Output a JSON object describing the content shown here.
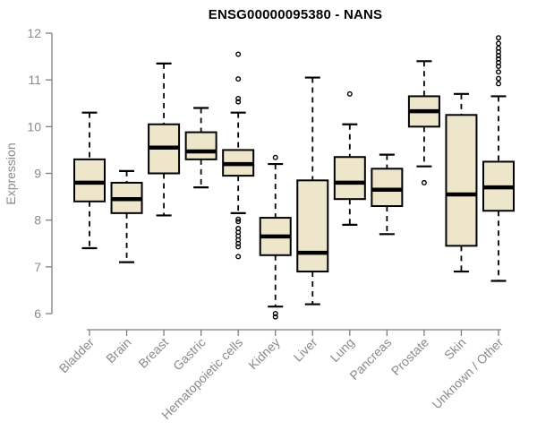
{
  "title": "ENSG00000095380 - NANS",
  "chart_data": {
    "type": "boxplot",
    "title": "ENSG00000095380 - NANS",
    "xlabel": "",
    "ylabel": "Expression",
    "ylim": [
      6,
      12
    ],
    "yticks": [
      6,
      7,
      8,
      9,
      10,
      11,
      12
    ],
    "grid": false,
    "categories": [
      "Bladder",
      "Brain",
      "Breast",
      "Gastric",
      "Hematopoietic cells",
      "Kidney",
      "Liver",
      "Lung",
      "Pancreas",
      "Prostate",
      "Skin",
      "Unknown / Other"
    ],
    "boxes": [
      {
        "category": "Bladder",
        "whisker_low": 7.4,
        "q1": 8.4,
        "median": 8.8,
        "q3": 9.3,
        "whisker_high": 10.3,
        "outliers": []
      },
      {
        "category": "Brain",
        "whisker_low": 7.1,
        "q1": 8.15,
        "median": 8.45,
        "q3": 8.8,
        "whisker_high": 9.05,
        "outliers": []
      },
      {
        "category": "Breast",
        "whisker_low": 8.1,
        "q1": 9.0,
        "median": 9.55,
        "q3": 10.05,
        "whisker_high": 11.35,
        "outliers": []
      },
      {
        "category": "Gastric",
        "whisker_low": 8.7,
        "q1": 9.3,
        "median": 9.47,
        "q3": 9.88,
        "whisker_high": 10.4,
        "outliers": []
      },
      {
        "category": "Hematopoietic cells",
        "whisker_low": 8.15,
        "q1": 8.95,
        "median": 9.2,
        "q3": 9.5,
        "whisker_high": 10.3,
        "outliers": [
          11.55,
          11.02,
          10.6,
          10.53,
          8.02,
          7.97,
          7.82,
          7.74,
          7.66,
          7.58,
          7.5,
          7.43,
          7.22
        ]
      },
      {
        "category": "Kidney",
        "whisker_low": 6.15,
        "q1": 7.25,
        "median": 7.65,
        "q3": 8.05,
        "whisker_high": 9.2,
        "outliers": [
          9.34,
          6.0,
          5.93
        ]
      },
      {
        "category": "Liver",
        "whisker_low": 6.2,
        "q1": 6.9,
        "median": 7.3,
        "q3": 8.85,
        "whisker_high": 11.05,
        "outliers": []
      },
      {
        "category": "Lung",
        "whisker_low": 7.9,
        "q1": 8.45,
        "median": 8.8,
        "q3": 9.35,
        "whisker_high": 10.05,
        "outliers": [
          10.7
        ]
      },
      {
        "category": "Pancreas",
        "whisker_low": 7.7,
        "q1": 8.3,
        "median": 8.65,
        "q3": 9.1,
        "whisker_high": 9.4,
        "outliers": []
      },
      {
        "category": "Prostate",
        "whisker_low": 9.15,
        "q1": 10.0,
        "median": 10.33,
        "q3": 10.65,
        "whisker_high": 11.4,
        "outliers": [
          8.8
        ]
      },
      {
        "category": "Skin",
        "whisker_low": 6.9,
        "q1": 7.45,
        "median": 8.55,
        "q3": 10.25,
        "whisker_high": 10.7,
        "outliers": []
      },
      {
        "category": "Unknown / Other",
        "whisker_low": 6.7,
        "q1": 8.2,
        "median": 8.7,
        "q3": 9.25,
        "whisker_high": 10.65,
        "outliers": [
          11.9,
          11.78,
          11.68,
          11.6,
          11.52,
          11.45,
          11.37,
          11.29,
          11.17,
          11.03,
          10.92
        ]
      }
    ],
    "colors": {
      "box_fill": "#EDE6CB",
      "box_border": "#000000",
      "median": "#000000",
      "whisker": "#000000",
      "outlier": "#000000",
      "axis_line": "#7f7f7f",
      "axis_text": "#8a8a8a",
      "title": "#000000",
      "background": "#ffffff"
    }
  }
}
